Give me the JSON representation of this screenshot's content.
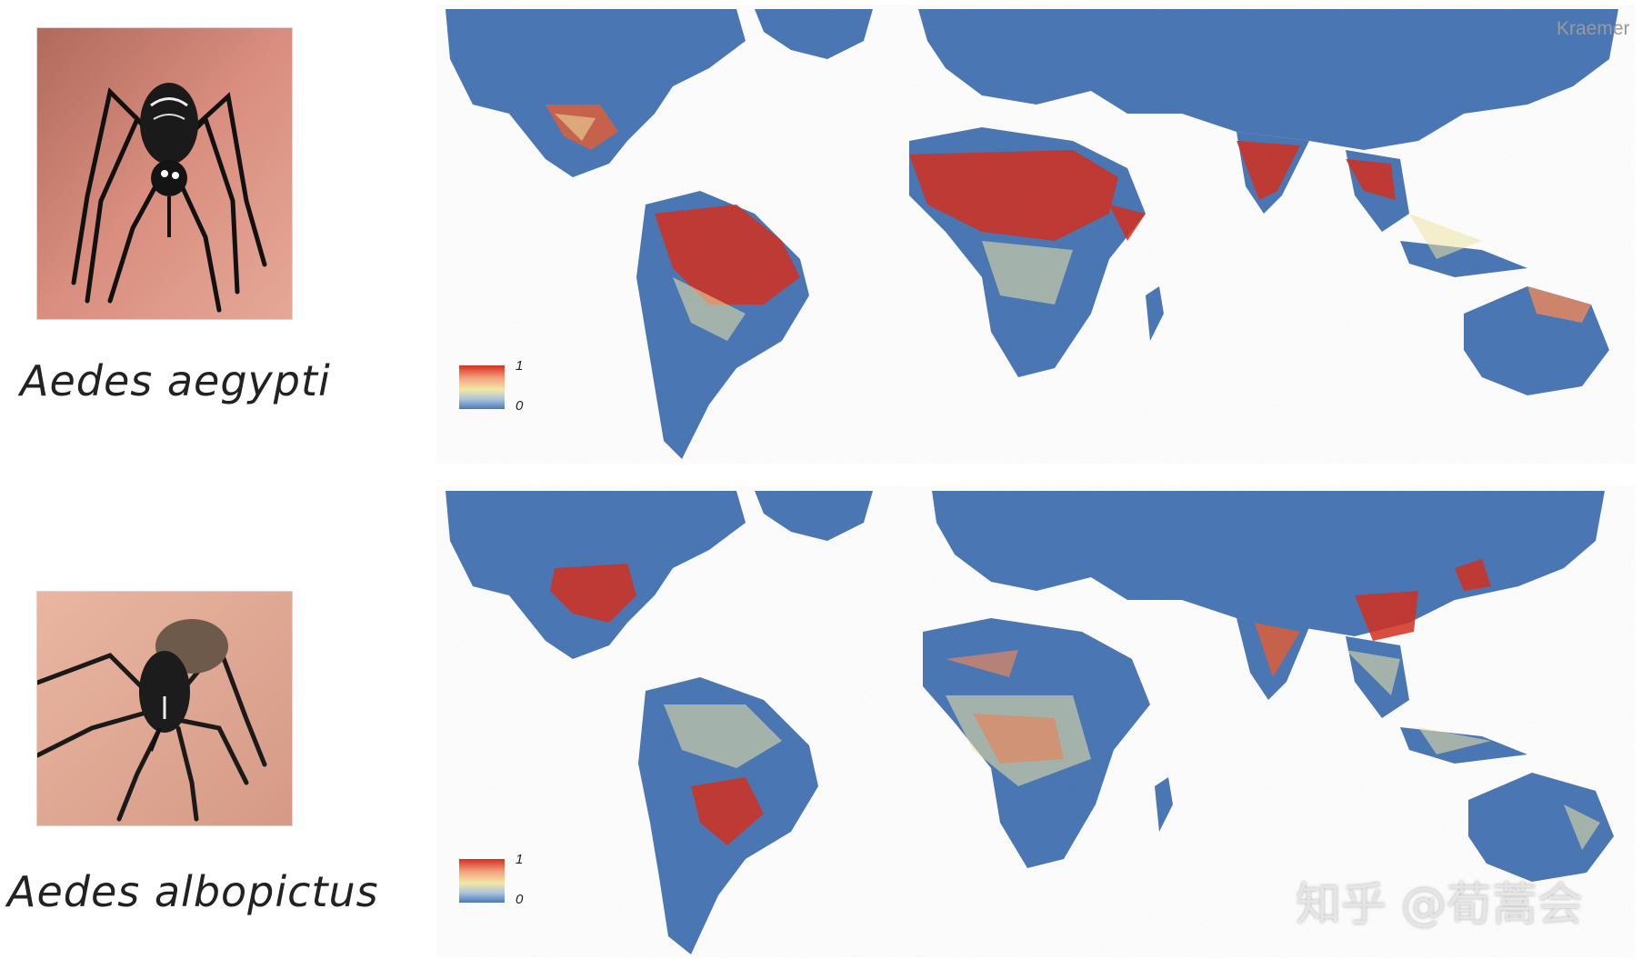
{
  "rows": [
    {
      "species": "Aedes aegypti",
      "legend": {
        "max": "1",
        "min": "0"
      }
    },
    {
      "species": "Aedes albopictus",
      "legend": {
        "max": "1",
        "min": "0"
      }
    }
  ],
  "credit": "Kraemer",
  "watermark": "知乎 @荀蒿会",
  "colors": {
    "ocean": "#ffffff",
    "land_low": "#4b78b6",
    "mid": "#f3e7a6",
    "land_high": "#d7301f"
  }
}
